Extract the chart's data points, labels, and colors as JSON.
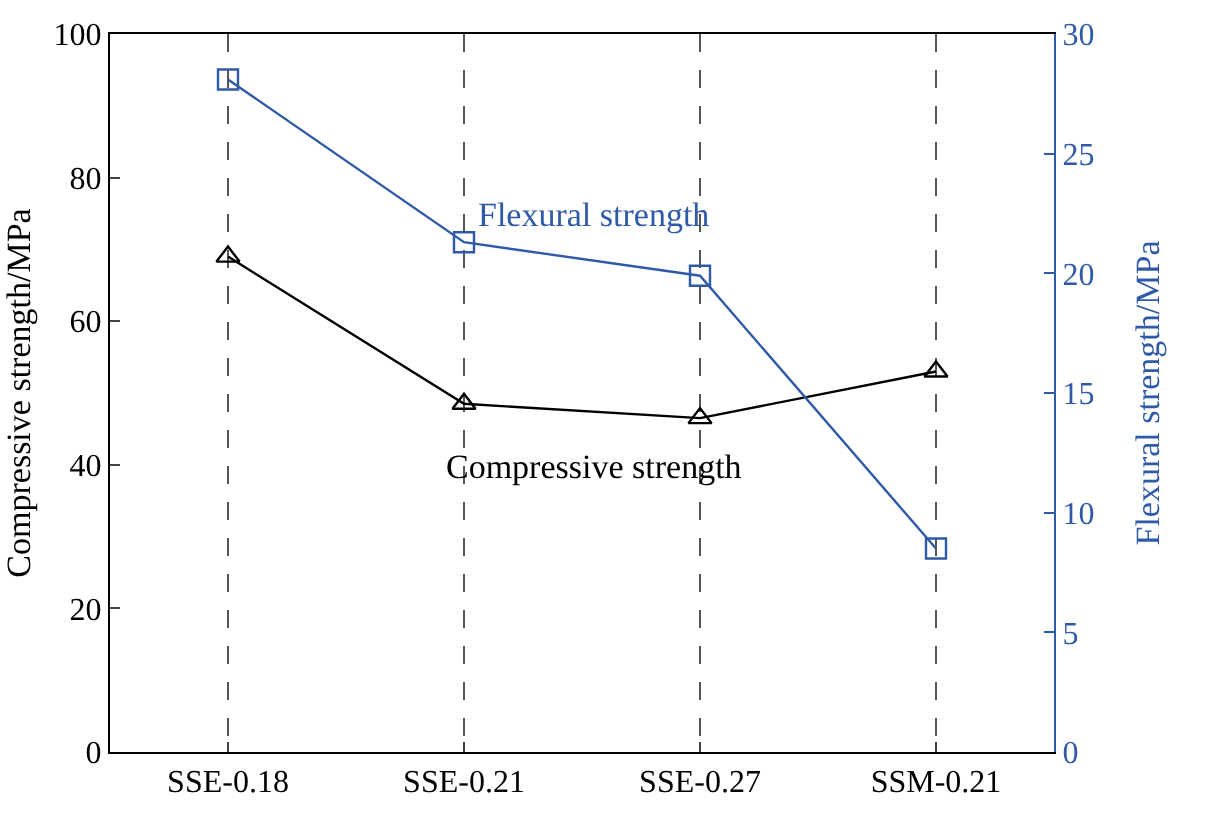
{
  "chart_data": {
    "type": "line",
    "categories": [
      "SSE-0.18",
      "SSE-0.21",
      "SSE-0.27",
      "SSM-0.21"
    ],
    "ylabel": "Compressive strength/MPa",
    "y2label": "Flexural strength/MPa",
    "ylim": [
      0,
      100
    ],
    "yticks": [
      0,
      20,
      40,
      60,
      80,
      100
    ],
    "y2lim": [
      0,
      30
    ],
    "y2ticks": [
      0,
      5,
      10,
      15,
      20,
      25,
      30
    ],
    "grid": "x",
    "legend": false,
    "line_style": "solid",
    "series": [
      {
        "name": "Compressive strength",
        "color": "#000000",
        "marker": "triangle",
        "values": [
          69,
          48.5,
          46.5,
          53
        ]
      },
      {
        "name": "Flexural strength",
        "color": "#2f5aa8",
        "marker": "square",
        "axis": "y2",
        "values": [
          28.1,
          21.3,
          19.9,
          8.5
        ]
      }
    ]
  }
}
